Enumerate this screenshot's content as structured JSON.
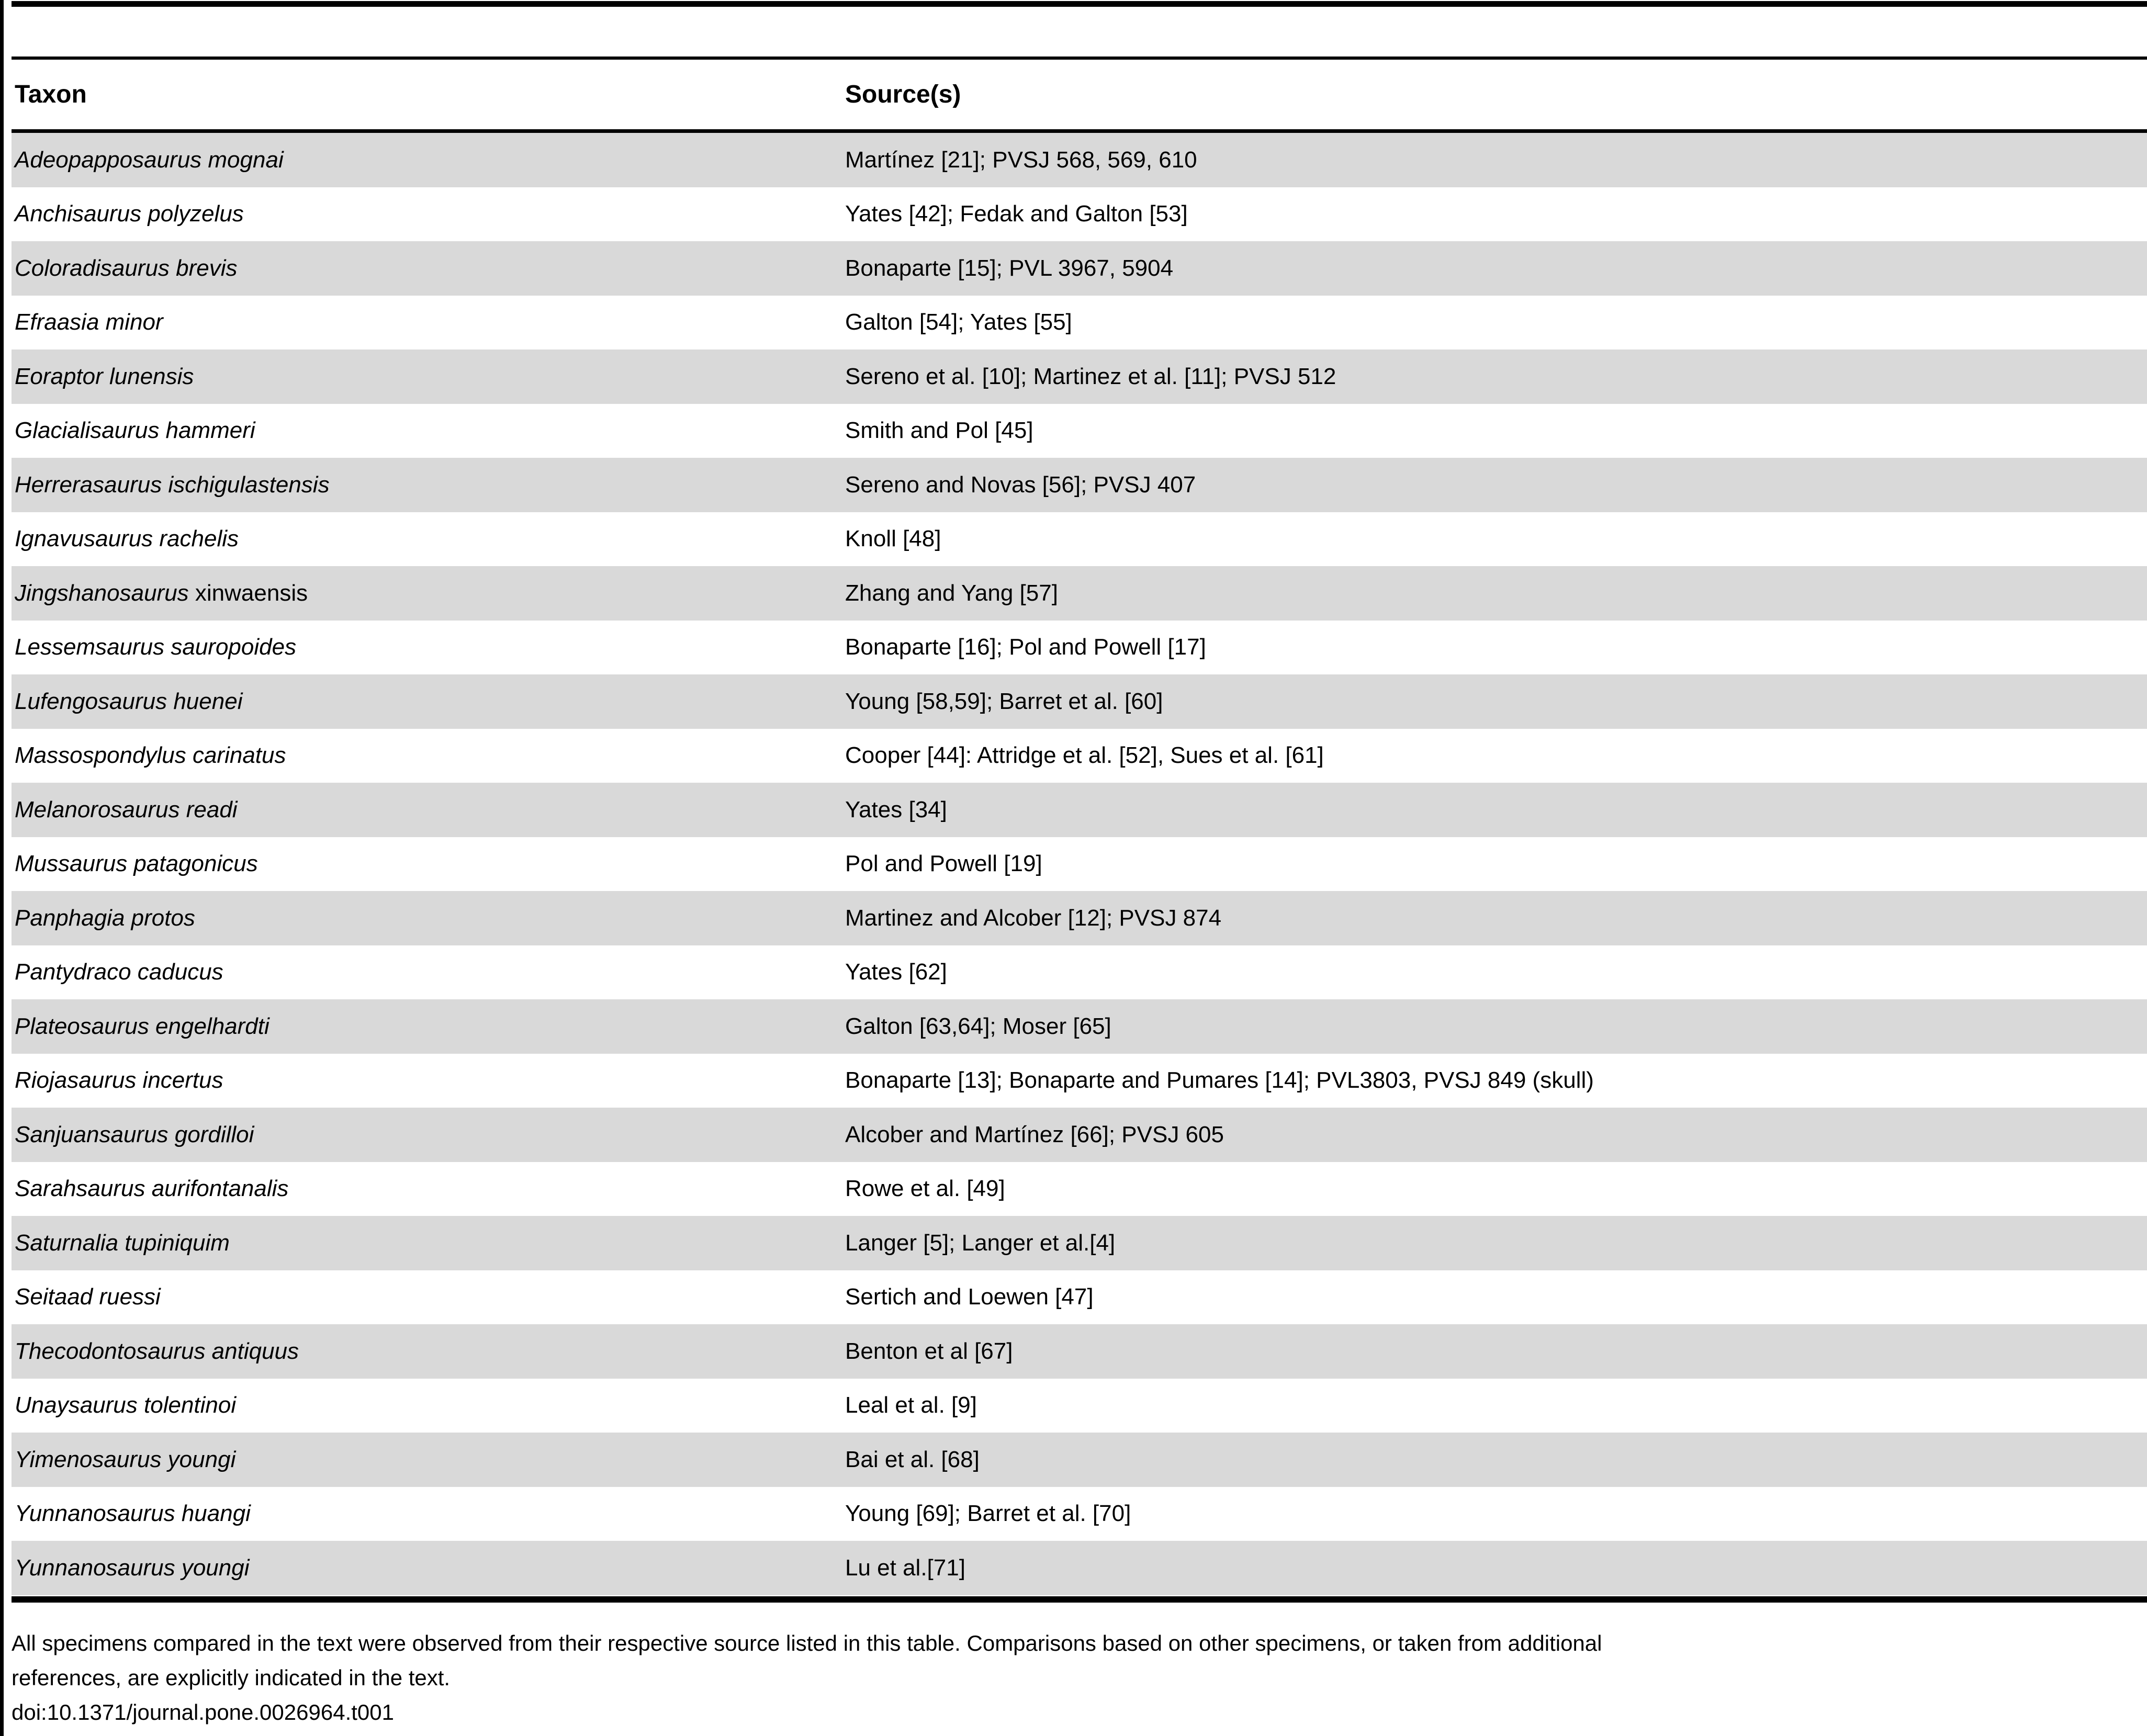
{
  "table": {
    "columns": [
      {
        "label": "Taxon"
      },
      {
        "label": "Source(s)"
      }
    ],
    "rows": [
      {
        "taxon_italic": "Adeopapposaurus mognai",
        "taxon_roman": "",
        "source": "Martínez [21]; PVSJ 568, 569, 610",
        "shaded": true
      },
      {
        "taxon_italic": "Anchisaurus polyzelus",
        "taxon_roman": "",
        "source": "Yates [42]; Fedak and Galton [53]",
        "shaded": false
      },
      {
        "taxon_italic": "Coloradisaurus brevis",
        "taxon_roman": "",
        "source": "Bonaparte [15]; PVL 3967, 5904",
        "shaded": true
      },
      {
        "taxon_italic": "Efraasia minor",
        "taxon_roman": "",
        "source": "Galton [54]; Yates [55]",
        "shaded": false
      },
      {
        "taxon_italic": "Eoraptor lunensis",
        "taxon_roman": "",
        "source": "Sereno et al. [10]; Martinez et al. [11]; PVSJ 512",
        "shaded": true
      },
      {
        "taxon_italic": "Glacialisaurus hammeri",
        "taxon_roman": "",
        "source": "Smith and Pol [45]",
        "shaded": false
      },
      {
        "taxon_italic": "Herrerasaurus ischigulastensis",
        "taxon_roman": "",
        "source": "Sereno and Novas [56]; PVSJ 407",
        "shaded": true
      },
      {
        "taxon_italic": "Ignavusaurus rachelis",
        "taxon_roman": "",
        "source": "Knoll [48]",
        "shaded": false
      },
      {
        "taxon_italic": "Jingshanosaurus",
        "taxon_roman": "xinwaensis",
        "source": "Zhang and Yang [57]",
        "shaded": true
      },
      {
        "taxon_italic": "Lessemsaurus sauropoides",
        "taxon_roman": "",
        "source": "Bonaparte [16]; Pol and Powell [17]",
        "shaded": false
      },
      {
        "taxon_italic": "Lufengosaurus huenei",
        "taxon_roman": "",
        "source": "Young [58,59]; Barret et al. [60]",
        "shaded": true
      },
      {
        "taxon_italic": "Massospondylus carinatus",
        "taxon_roman": "",
        "source": "Cooper [44]: Attridge et al. [52], Sues et al. [61]",
        "shaded": false
      },
      {
        "taxon_italic": "Melanorosaurus readi",
        "taxon_roman": "",
        "source": "Yates [34]",
        "shaded": true
      },
      {
        "taxon_italic": "Mussaurus patagonicus",
        "taxon_roman": "",
        "source": "Pol and Powell [19]",
        "shaded": false
      },
      {
        "taxon_italic": "Panphagia protos",
        "taxon_roman": "",
        "source": "Martinez and Alcober [12]; PVSJ 874",
        "shaded": true
      },
      {
        "taxon_italic": "Pantydraco caducus",
        "taxon_roman": "",
        "source": "Yates [62]",
        "shaded": false
      },
      {
        "taxon_italic": "Plateosaurus engelhardti",
        "taxon_roman": "",
        "source": "Galton [63,64]; Moser [65]",
        "shaded": true
      },
      {
        "taxon_italic": "Riojasaurus incertus",
        "taxon_roman": "",
        "source": "Bonaparte [13]; Bonaparte and Pumares [14]; PVL3803, PVSJ 849 (skull)",
        "shaded": false
      },
      {
        "taxon_italic": "Sanjuansaurus gordilloi",
        "taxon_roman": "",
        "source": "Alcober and Martínez [66]; PVSJ 605",
        "shaded": true
      },
      {
        "taxon_italic": "Sarahsaurus aurifontanalis",
        "taxon_roman": "",
        "source": "Rowe et al. [49]",
        "shaded": false
      },
      {
        "taxon_italic": "Saturnalia tupiniquim",
        "taxon_roman": "",
        "source": "Langer [5]; Langer et al.[4]",
        "shaded": true
      },
      {
        "taxon_italic": "Seitaad ruessi",
        "taxon_roman": "",
        "source": "Sertich and Loewen [47]",
        "shaded": false
      },
      {
        "taxon_italic": "Thecodontosaurus antiquus",
        "taxon_roman": "",
        "source": "Benton et al [67]",
        "shaded": true
      },
      {
        "taxon_italic": "Unaysaurus tolentinoi",
        "taxon_roman": "",
        "source": "Leal et al. [9]",
        "shaded": false
      },
      {
        "taxon_italic": "Yimenosaurus youngi",
        "taxon_roman": "",
        "source": "Bai et al. [68]",
        "shaded": true
      },
      {
        "taxon_italic": "Yunnanosaurus huangi",
        "taxon_roman": "",
        "source": "Young [69]; Barret et al. [70]",
        "shaded": false
      },
      {
        "taxon_italic": "Yunnanosaurus youngi",
        "taxon_roman": "",
        "source": "Lu et al.[71]",
        "shaded": true
      }
    ],
    "colors": {
      "row_shade": "#d9d9d9",
      "rule": "#000000",
      "text": "#000000",
      "background": "#ffffff"
    }
  },
  "footer": {
    "note_lines": [
      "All specimens compared in the text were observed from their respective source listed in this table. Comparisons based on other specimens, or taken from additional",
      "references, are explicitly indicated in the text."
    ],
    "doi": "doi:10.1371/journal.pone.0026964.t001"
  }
}
